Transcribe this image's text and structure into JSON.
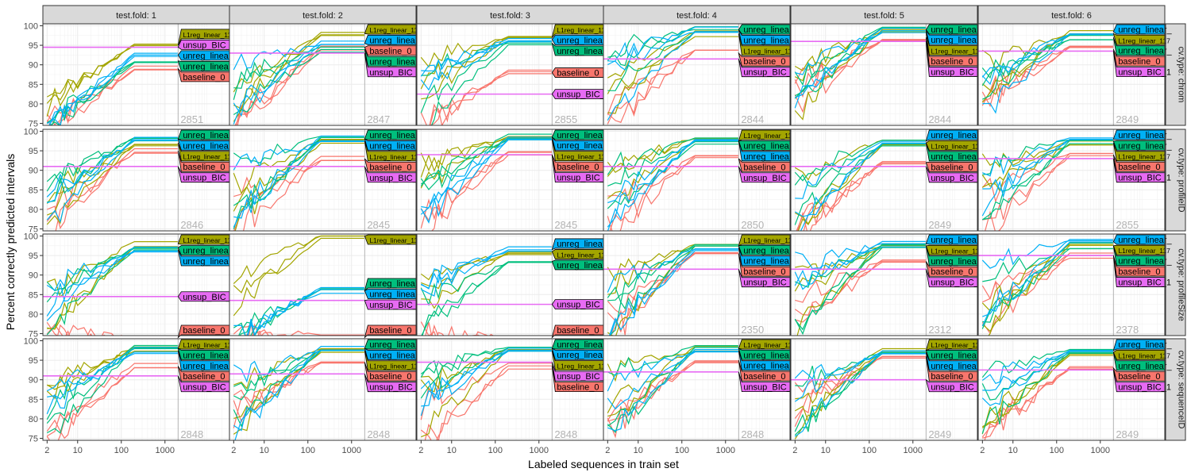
{
  "chart_data": {
    "type": "line",
    "xlabel": "Labeled sequences in train set",
    "ylabel": "Percent correctly predicted intervals",
    "x_scale": "log",
    "xlim": [
      1.6,
      30000
    ],
    "ylim": [
      74.5,
      100.5
    ],
    "x_ticks": [
      2,
      10,
      100,
      1000
    ],
    "x_tick_labels": [
      "2",
      "10",
      "100",
      "1000"
    ],
    "y_ticks": [
      75,
      80,
      85,
      90,
      95,
      100
    ],
    "y_tick_labels": [
      "75",
      "80",
      "85",
      "90",
      "95",
      "100"
    ],
    "grid": true,
    "legend": "none",
    "series_colors": {
      "baseline_0": "#F8766D",
      "L1reg_linear_117": "#A3A500",
      "unreg_linear_2": "#00BF7D",
      "unreg_linear_117": "#00B0F6",
      "unsup_BIC_1": "#E76BF3"
    },
    "cols": [
      "test.fold: 1",
      "test.fold: 2",
      "test.fold: 3",
      "test.fold: 4",
      "test.fold: 5",
      "test.fold: 6"
    ],
    "rows": [
      "cv.type: chrom",
      "cv.type: profileID",
      "cv.type: profileSize",
      "cv.type: sequenceID"
    ],
    "counts": [
      [
        "2851",
        "2847",
        "2855",
        "2844",
        "2844",
        "2849"
      ],
      [
        "2846",
        "2845",
        "2845",
        "2850",
        "2849",
        "2855"
      ],
      [
        "",
        "",
        "",
        "2350",
        "2312",
        "2378"
      ],
      [
        "2848",
        "2848",
        "2848",
        "2848",
        "2849",
        "2849"
      ]
    ],
    "vline_x": [
      [
        2000,
        2000,
        2000,
        2000,
        2000,
        2000
      ],
      [
        2000,
        2000,
        2000,
        2000,
        2000,
        2000
      ],
      [
        2000,
        2000,
        2000,
        2000,
        2000,
        2000
      ],
      [
        2000,
        2000,
        2000,
        2000,
        2000,
        2000
      ]
    ],
    "label_text": {
      "baseline_0": "baseline_0",
      "L1reg_linear_117": "L1reg_linear_117",
      "unreg_linear_2": "unreg_linear_",
      "unreg_linear_117": "unreg_linear_",
      "unsup_BIC_1": "unsup_BIC_1"
    },
    "finals": [
      [
        {
          "baseline_0": 89,
          "L1reg_linear_117": 95,
          "unreg_linear_2": 91,
          "unreg_linear_117": 92.5,
          "unsup_BIC_1": 94.5
        },
        {
          "baseline_0": 94.5,
          "L1reg_linear_117": 98,
          "unreg_linear_2": 94,
          "unreg_linear_117": 95.5,
          "unsup_BIC_1": 93
        },
        {
          "baseline_0": 88,
          "L1reg_linear_117": 97,
          "unreg_linear_2": 95.5,
          "unreg_linear_117": 96.5,
          "unsup_BIC_1": 82.5
        },
        {
          "baseline_0": 93,
          "L1reg_linear_117": 98,
          "unreg_linear_2": 99,
          "unreg_linear_117": 99,
          "unsup_BIC_1": 91.5
        },
        {
          "baseline_0": 97,
          "L1reg_linear_117": 98.5,
          "unreg_linear_2": 99,
          "unreg_linear_117": 99,
          "unsup_BIC_1": 96
        },
        {
          "baseline_0": 94,
          "L1reg_linear_117": 98,
          "unreg_linear_2": 97,
          "unreg_linear_117": 98.5,
          "unsup_BIC_1": 93.5
        }
      ],
      [
        {
          "baseline_0": 95,
          "L1reg_linear_117": 97,
          "unreg_linear_2": 98,
          "unreg_linear_117": 98,
          "unsup_BIC_1": 91
        },
        {
          "baseline_0": 93,
          "L1reg_linear_117": 97.5,
          "unreg_linear_2": 98,
          "unreg_linear_117": 98,
          "unsup_BIC_1": 91
        },
        {
          "baseline_0": 94,
          "L1reg_linear_117": 98,
          "unreg_linear_2": 98.5,
          "unreg_linear_117": 98.5,
          "unsup_BIC_1": 94
        },
        {
          "baseline_0": 93,
          "L1reg_linear_117": 97.5,
          "unreg_linear_2": 97.5,
          "unreg_linear_117": 97.5,
          "unsup_BIC_1": 91
        },
        {
          "baseline_0": 92,
          "L1reg_linear_117": 97,
          "unreg_linear_2": 97,
          "unreg_linear_117": 97.5,
          "unsup_BIC_1": 91
        },
        {
          "baseline_0": 94,
          "L1reg_linear_117": 97,
          "unreg_linear_2": 97.5,
          "unreg_linear_117": 98,
          "unsup_BIC_1": 93
        }
      ],
      [
        {
          "baseline_0": 74,
          "L1reg_linear_117": 98,
          "unreg_linear_2": 97,
          "unreg_linear_117": 96.5,
          "unsup_BIC_1": 84.5
        },
        {
          "baseline_0": 74,
          "L1reg_linear_117": 100,
          "unreg_linear_2": 86,
          "unreg_linear_117": 86,
          "unsup_BIC_1": 83.5
        },
        {
          "baseline_0": 74,
          "L1reg_linear_117": 96,
          "unreg_linear_2": 93.5,
          "unreg_linear_117": 96.5,
          "unsup_BIC_1": 82.5
        },
        {
          "baseline_0": 95.5,
          "L1reg_linear_117": 97.5,
          "unreg_linear_2": 97.5,
          "unreg_linear_117": 97,
          "unsup_BIC_1": 91.5
        },
        {
          "baseline_0": 93.5,
          "L1reg_linear_117": 97.5,
          "unreg_linear_2": 97.5,
          "unreg_linear_117": 98,
          "unsup_BIC_1": 91.5
        },
        {
          "baseline_0": 95,
          "L1reg_linear_117": 97.5,
          "unreg_linear_2": 97.5,
          "unreg_linear_117": 98.5,
          "unsup_BIC_1": 95
        }
      ],
      [
        {
          "baseline_0": 93.5,
          "L1reg_linear_117": 98,
          "unreg_linear_2": 98,
          "unreg_linear_117": 97.5,
          "unsup_BIC_1": 91
        },
        {
          "baseline_0": 94.5,
          "L1reg_linear_117": 97.5,
          "unreg_linear_2": 98,
          "unreg_linear_117": 98,
          "unsup_BIC_1": 91.5
        },
        {
          "baseline_0": 93.5,
          "L1reg_linear_117": 97.5,
          "unreg_linear_2": 98,
          "unreg_linear_117": 98,
          "unsup_BIC_1": 94.5
        },
        {
          "baseline_0": 95,
          "L1reg_linear_117": 98,
          "unreg_linear_2": 98,
          "unreg_linear_117": 97.5,
          "unsup_BIC_1": 92
        },
        {
          "baseline_0": 96,
          "L1reg_linear_117": 97.5,
          "unreg_linear_2": 97.5,
          "unreg_linear_117": 97,
          "unsup_BIC_1": 90
        },
        {
          "baseline_0": 93,
          "L1reg_linear_117": 97,
          "unreg_linear_2": 97,
          "unreg_linear_117": 97.5,
          "unsup_BIC_1": 92.5
        }
      ]
    ]
  }
}
